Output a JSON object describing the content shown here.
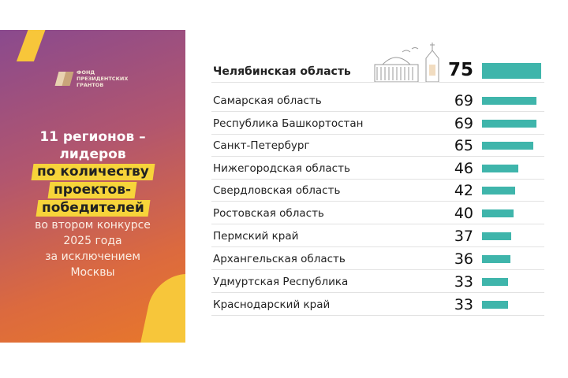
{
  "panel": {
    "logo_text": "ФОНД ПРЕЗИДЕНТСКИХ ГРАНТОВ",
    "title_line1": "11 регионов –",
    "title_line2": "лидеров",
    "highlight1": "по количеству",
    "highlight2": "проектов-",
    "highlight3": "победителей",
    "sub1": "во втором конкурсе",
    "sub2": "2025 года",
    "sub3": "за исключением",
    "sub4": "Москвы"
  },
  "colors": {
    "bar": "#3fb5ab",
    "highlight": "#f7d43a"
  },
  "chart_data": {
    "type": "bar",
    "orientation": "horizontal",
    "categories": [
      "Челябинская область",
      "Самарская область",
      "Республика Башкортостан",
      "Санкт-Петербург",
      "Нижегородская область",
      "Свердловская область",
      "Ростовская область",
      "Пермский край",
      "Архангельская область",
      "Удмуртская Республика",
      "Краснодарский край"
    ],
    "values": [
      75,
      69,
      69,
      65,
      46,
      42,
      40,
      37,
      36,
      33,
      33
    ],
    "labels": [
      "75",
      "69",
      "69",
      "65",
      "46",
      "42",
      "40",
      "37",
      "36",
      "33",
      "33"
    ]
  }
}
